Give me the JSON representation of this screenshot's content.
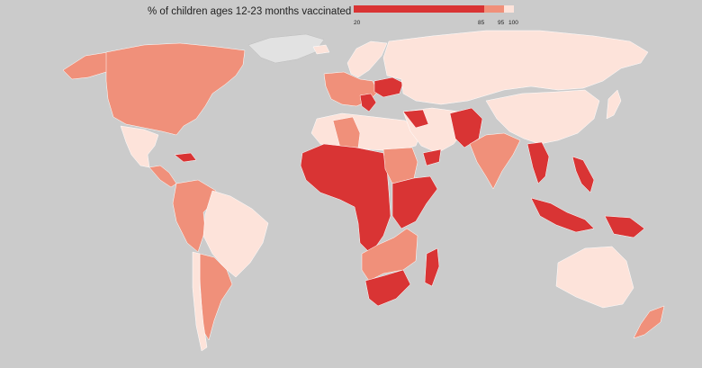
{
  "legend": {
    "title": "% of children ages 12-23 months vaccinated",
    "breaks": [
      "20",
      "85",
      "95",
      "100"
    ],
    "colors": {
      "low": "#d93434",
      "mid": "#f0907a",
      "high": "#fde3da",
      "nodata": "#e2e2e2",
      "ocean": "#cbcbcb"
    }
  },
  "regions": {
    "north_america": {
      "band": "mid"
    },
    "alaska": {
      "band": "mid"
    },
    "greenland": {
      "band": "nodata"
    },
    "mexico": {
      "band": "high"
    },
    "central_america": {
      "band": "mid"
    },
    "caribbean_hispaniola": {
      "band": "low"
    },
    "south_america_nw": {
      "band": "mid"
    },
    "brazil": {
      "band": "high"
    },
    "southern_cone": {
      "band": "mid"
    },
    "chile_strip": {
      "band": "high"
    },
    "iceland": {
      "band": "high"
    },
    "scandinavia": {
      "band": "high"
    },
    "western_europe": {
      "band": "mid"
    },
    "ukraine": {
      "band": "low"
    },
    "balkans": {
      "band": "low"
    },
    "russia": {
      "band": "high"
    },
    "north_africa": {
      "band": "high"
    },
    "algeria": {
      "band": "mid"
    },
    "west_central_africa": {
      "band": "low"
    },
    "sudan": {
      "band": "mid"
    },
    "east_africa": {
      "band": "low"
    },
    "southern_africa_mid": {
      "band": "mid"
    },
    "southern_africa_low": {
      "band": "low"
    },
    "madagascar": {
      "band": "low"
    },
    "middle_east": {
      "band": "high"
    },
    "syria_iraq": {
      "band": "low"
    },
    "yemen": {
      "band": "low"
    },
    "afghanistan_pakistan": {
      "band": "low"
    },
    "india": {
      "band": "mid"
    },
    "china_east_asia": {
      "band": "high"
    },
    "southeast_asia_mainland": {
      "band": "low"
    },
    "philippines": {
      "band": "low"
    },
    "indonesia": {
      "band": "low"
    },
    "papua": {
      "band": "low"
    },
    "australia": {
      "band": "high"
    },
    "new_zealand": {
      "band": "mid"
    },
    "japan": {
      "band": "high"
    }
  }
}
